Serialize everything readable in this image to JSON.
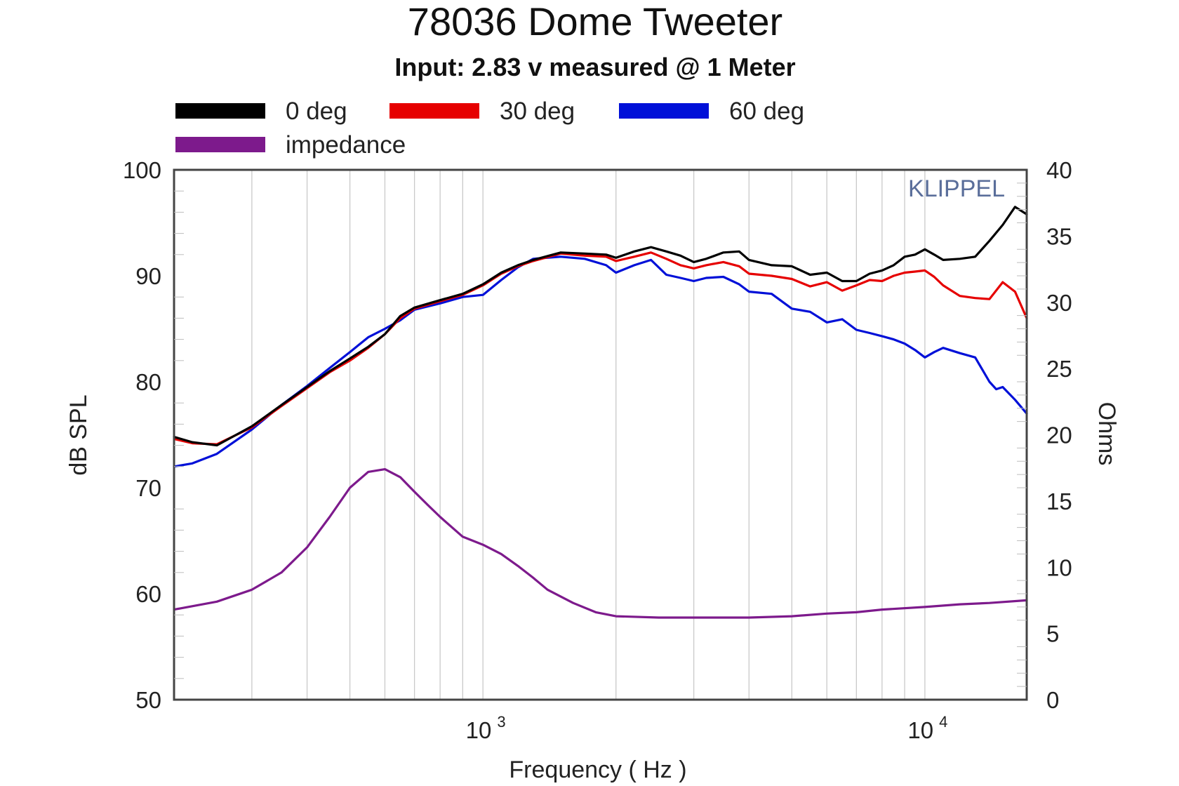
{
  "chart_data": {
    "type": "line",
    "title": "78036 Dome Tweeter",
    "subtitle": "Input: 2.83 v measured @ 1 Meter",
    "watermark": "KLIPPEL",
    "xlabel": "Frequency ( Hz )",
    "ylabel": "dB SPL",
    "y2label": "Ohms",
    "xscale": "log",
    "xlim": [
      200,
      17000
    ],
    "ylim": [
      50,
      100
    ],
    "y2lim": [
      0,
      40
    ],
    "x_ticks": [
      {
        "value": 1000,
        "base": "10",
        "exp": "3"
      },
      {
        "value": 10000,
        "base": "10",
        "exp": "4"
      }
    ],
    "y_ticks": [
      "50",
      "60",
      "70",
      "80",
      "90",
      "100"
    ],
    "y2_ticks": [
      "0",
      "5",
      "10",
      "15",
      "20",
      "25",
      "30",
      "35",
      "40"
    ],
    "grid": true,
    "legend_position": "top-left",
    "series": [
      {
        "name": "0 deg",
        "color": "#000000",
        "axis": "left",
        "x": [
          200,
          220,
          250,
          300,
          350,
          400,
          450,
          500,
          550,
          600,
          650,
          700,
          800,
          900,
          1000,
          1100,
          1200,
          1300,
          1500,
          1700,
          1900,
          2000,
          2200,
          2400,
          2600,
          2800,
          3000,
          3200,
          3500,
          3800,
          4000,
          4500,
          5000,
          5500,
          6000,
          6500,
          7000,
          7500,
          8000,
          8500,
          9000,
          9500,
          10000,
          10500,
          11000,
          12000,
          13000,
          14000,
          15000,
          16000,
          17000
        ],
        "values": [
          74.8,
          74.3,
          74.0,
          75.8,
          77.8,
          79.5,
          81.0,
          82.2,
          83.3,
          84.5,
          86.2,
          87.0,
          87.7,
          88.3,
          89.2,
          90.3,
          91.0,
          91.5,
          92.2,
          92.1,
          92.0,
          91.7,
          92.3,
          92.7,
          92.3,
          91.9,
          91.3,
          91.6,
          92.2,
          92.3,
          91.5,
          91.0,
          90.9,
          90.1,
          90.3,
          89.5,
          89.5,
          90.2,
          90.5,
          91.0,
          91.8,
          92.0,
          92.5,
          92.0,
          91.5,
          91.6,
          91.8,
          93.3,
          94.8,
          96.5,
          95.8
        ]
      },
      {
        "name": "30 deg",
        "color": "#e60000",
        "axis": "left",
        "x": [
          200,
          220,
          250,
          300,
          350,
          400,
          450,
          500,
          550,
          600,
          650,
          700,
          800,
          900,
          1000,
          1100,
          1200,
          1300,
          1500,
          1700,
          1900,
          2000,
          2200,
          2400,
          2600,
          2800,
          3000,
          3200,
          3500,
          3800,
          4000,
          4500,
          5000,
          5500,
          6000,
          6500,
          7000,
          7500,
          8000,
          8500,
          9000,
          9500,
          10000,
          10500,
          11000,
          12000,
          13000,
          14000,
          15000,
          16000,
          17000
        ],
        "values": [
          74.6,
          74.2,
          74.1,
          75.7,
          77.7,
          79.4,
          80.9,
          82.0,
          83.2,
          84.5,
          86.0,
          86.9,
          87.6,
          88.2,
          89.1,
          90.2,
          90.9,
          91.4,
          92.1,
          91.9,
          91.8,
          91.4,
          91.8,
          92.2,
          91.6,
          91.0,
          90.7,
          91.0,
          91.3,
          90.9,
          90.2,
          90.0,
          89.7,
          89.0,
          89.4,
          88.6,
          89.1,
          89.6,
          89.5,
          90.0,
          90.3,
          90.4,
          90.5,
          89.9,
          89.1,
          88.1,
          87.9,
          87.8,
          89.4,
          88.5,
          86.0
        ]
      },
      {
        "name": "60 deg",
        "color": "#0010d8",
        "axis": "left",
        "x": [
          200,
          220,
          250,
          300,
          350,
          400,
          450,
          500,
          550,
          600,
          650,
          700,
          800,
          900,
          1000,
          1100,
          1200,
          1300,
          1500,
          1700,
          1900,
          2000,
          2200,
          2400,
          2600,
          2800,
          3000,
          3200,
          3500,
          3800,
          4000,
          4500,
          5000,
          5500,
          6000,
          6500,
          7000,
          7500,
          8000,
          8500,
          9000,
          9500,
          10000,
          10500,
          11000,
          12000,
          13000,
          14000,
          14500,
          15000,
          16000,
          17000
        ],
        "values": [
          72.0,
          72.3,
          73.2,
          75.5,
          77.8,
          79.6,
          81.3,
          82.8,
          84.2,
          85.0,
          85.8,
          86.8,
          87.4,
          88.0,
          88.2,
          89.6,
          90.8,
          91.6,
          91.8,
          91.6,
          91.0,
          90.3,
          91.0,
          91.5,
          90.1,
          89.8,
          89.5,
          89.8,
          89.9,
          89.2,
          88.5,
          88.3,
          86.9,
          86.6,
          85.6,
          85.9,
          84.9,
          84.6,
          84.3,
          84.0,
          83.6,
          83.0,
          82.3,
          82.8,
          83.2,
          82.7,
          82.3,
          80.0,
          79.3,
          79.5,
          78.3,
          77.0
        ]
      },
      {
        "name": "impedance",
        "color": "#7d1a8c",
        "axis": "right",
        "x": [
          200,
          250,
          300,
          350,
          400,
          450,
          500,
          550,
          600,
          650,
          700,
          750,
          800,
          900,
          1000,
          1100,
          1200,
          1300,
          1400,
          1600,
          1800,
          2000,
          2500,
          3000,
          4000,
          5000,
          6000,
          7000,
          8000,
          10000,
          12000,
          14000,
          17000
        ],
        "values": [
          6.8,
          7.4,
          8.3,
          9.6,
          11.5,
          13.8,
          16.0,
          17.2,
          17.4,
          16.8,
          15.7,
          14.7,
          13.8,
          12.3,
          11.7,
          11.0,
          10.1,
          9.2,
          8.3,
          7.3,
          6.6,
          6.3,
          6.2,
          6.2,
          6.2,
          6.3,
          6.5,
          6.6,
          6.8,
          7.0,
          7.2,
          7.3,
          7.5
        ]
      }
    ]
  }
}
